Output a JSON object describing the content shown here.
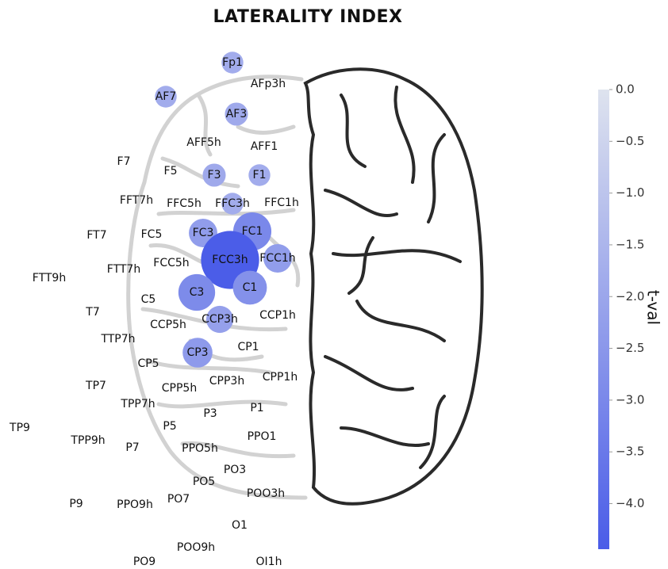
{
  "chart_data": {
    "type": "bubble",
    "title": "LATERALITY INDEX",
    "categories": [
      "Fp1",
      "AFp3h",
      "AF7",
      "AF3",
      "AFF5h",
      "AFF1",
      "F7",
      "F5",
      "F3",
      "F1",
      "FFT7h",
      "FFC5h",
      "FFC3h",
      "FFC1h",
      "FT7",
      "FC5",
      "FC3",
      "FC1",
      "FTT9h",
      "FTT7h",
      "FCC5h",
      "FCC3h",
      "FCC1h",
      "C5",
      "C3",
      "C1",
      "T7",
      "CCP5h",
      "CCP3h",
      "CCP1h",
      "TTP7h",
      "CP5",
      "CP3",
      "CP1",
      "TP7",
      "CPP5h",
      "CPP3h",
      "CPP1h",
      "TPP7h",
      "P3",
      "P1",
      "TP9",
      "P5",
      "TPP9h",
      "P7",
      "PPO5h",
      "PPO1",
      "PO3",
      "PO5",
      "P9",
      "PPO9h",
      "PO7",
      "POO3h",
      "O1",
      "POO9h",
      "PO9",
      "OI1h"
    ],
    "values": [
      -1.8,
      null,
      -1.8,
      -1.9,
      null,
      null,
      null,
      null,
      -1.9,
      -1.8,
      null,
      null,
      -1.8,
      null,
      null,
      null,
      -2.3,
      -3.0,
      null,
      null,
      null,
      -4.4,
      -2.3,
      null,
      -2.9,
      -2.7,
      null,
      null,
      -2.2,
      null,
      null,
      null,
      -2.4,
      null,
      null,
      null,
      null,
      null,
      null,
      null,
      null,
      null,
      null,
      null,
      null,
      null,
      null,
      null,
      null,
      null,
      null,
      null,
      null,
      null,
      null,
      null,
      null
    ],
    "clim": [
      -4.44,
      0
    ],
    "cmap": [
      "#dee3ee",
      "#4a5ce8"
    ],
    "colorbar_label": "t-val",
    "cticks": [
      {
        "value": 0,
        "label": "0.0"
      },
      {
        "value": -0.5,
        "label": "−0.5"
      },
      {
        "value": -1,
        "label": "−1.0"
      },
      {
        "value": -1.5,
        "label": "−1.5"
      },
      {
        "value": -2,
        "label": "−2.0"
      },
      {
        "value": -2.5,
        "label": "−2.5"
      },
      {
        "value": -3,
        "label": "−3.0"
      },
      {
        "value": -3.5,
        "label": "−3.5"
      },
      {
        "value": -4,
        "label": "−4.0"
      }
    ]
  }
}
